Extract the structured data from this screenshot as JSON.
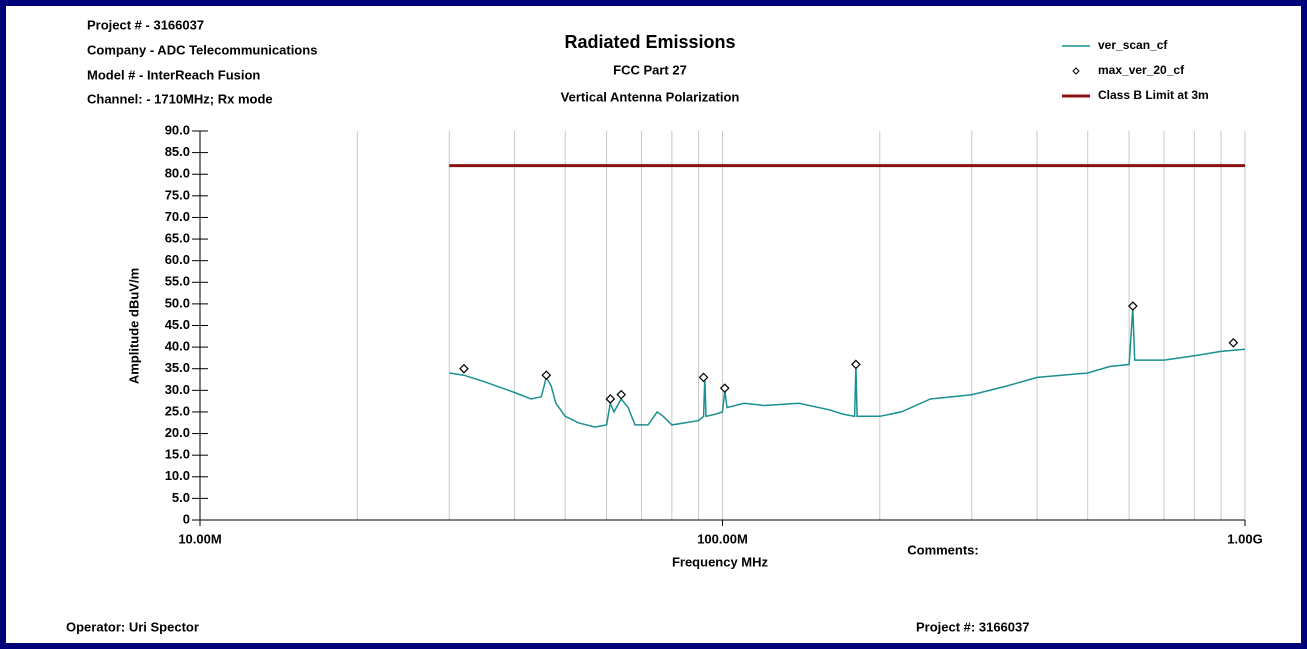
{
  "chart_data": {
    "type": "line",
    "title": "Radiated Emissions",
    "subtitles": [
      "FCC Part 27",
      "Vertical Antenna Polarization"
    ],
    "header_lines": [
      "Project # - 3166037",
      "Company - ADC Telecommunications",
      "Model # - InterReach Fusion",
      "Channel: - 1710MHz; Rx mode"
    ],
    "x_label": "Frequency MHz",
    "y_label": "Amplitude dBuV/m",
    "comments_label": "Comments:",
    "footer": {
      "operator": "Operator: Uri Spector",
      "project": "Project #: 3166037"
    },
    "x_log": true,
    "xlim": [
      10,
      1000
    ],
    "xticks": [
      {
        "value": 10,
        "label": "10.00M"
      },
      {
        "value": 100,
        "label": "100.00M"
      },
      {
        "value": 1000,
        "label": "1.00G"
      }
    ],
    "x_minor_grid": [
      20,
      30,
      40,
      50,
      60,
      70,
      80,
      90,
      200,
      300,
      400,
      500,
      600,
      700,
      800,
      900
    ],
    "ylim": [
      0,
      90
    ],
    "yticks": [
      0,
      {
        "value": 5,
        "label": "5.0"
      },
      {
        "value": 10,
        "label": "10.0"
      },
      {
        "value": 15,
        "label": "15.0"
      },
      {
        "value": 20,
        "label": "20.0"
      },
      {
        "value": 25,
        "label": "25.0"
      },
      {
        "value": 30,
        "label": "30.0"
      },
      {
        "value": 35,
        "label": "35.0"
      },
      {
        "value": 40,
        "label": "40.0"
      },
      {
        "value": 45,
        "label": "45.0"
      },
      {
        "value": 50,
        "label": "50.0"
      },
      {
        "value": 55,
        "label": "55.0"
      },
      {
        "value": 60,
        "label": "60.0"
      },
      {
        "value": 65,
        "label": "65.0"
      },
      {
        "value": 70,
        "label": "70.0"
      },
      {
        "value": 75,
        "label": "75.0"
      },
      {
        "value": 80,
        "label": "80.0"
      },
      {
        "value": 85,
        "label": "85.0"
      },
      {
        "value": 90,
        "label": "90.0"
      }
    ],
    "grid": "x",
    "series": [
      {
        "name": "ver_scan_cf",
        "color": "#1a9090",
        "style": "line",
        "x": [
          30,
          32,
          35,
          40,
          43,
          45,
          46,
          47,
          48,
          50,
          53,
          57,
          60,
          61,
          62,
          64,
          66,
          68,
          72,
          75,
          77,
          80,
          85,
          90,
          92,
          92.5,
          93,
          97,
          100,
          101,
          102,
          110,
          120,
          140,
          160,
          170,
          179,
          180,
          181,
          200,
          220,
          250,
          300,
          350,
          400,
          500,
          550,
          600,
          610,
          615,
          700,
          800,
          900,
          1000
        ],
        "values": [
          34,
          33.5,
          32,
          29.5,
          28,
          28.5,
          33,
          31,
          27,
          24,
          22.5,
          21.5,
          22,
          27,
          25,
          28,
          26,
          22,
          22,
          25,
          24,
          22,
          22.5,
          23,
          24,
          33,
          24,
          24.5,
          25,
          30,
          26,
          27,
          26.5,
          27,
          25.5,
          24.5,
          24,
          35.5,
          24,
          24,
          25,
          28,
          29,
          31,
          33,
          34,
          35.5,
          36,
          49,
          37,
          37,
          38,
          39,
          39.5
        ]
      },
      {
        "name": "max_ver_20_cf",
        "color": "#000000",
        "style": "marker",
        "x": [
          32,
          46,
          61,
          64,
          92,
          101,
          180,
          610,
          950
        ],
        "values": [
          35,
          33.5,
          28,
          29,
          33,
          30.5,
          36,
          49.5,
          41
        ]
      },
      {
        "name": "Class B Limit at 3m",
        "color": "#8b1010",
        "style": "line",
        "x": [
          30,
          1000
        ],
        "values": [
          82,
          82
        ]
      }
    ]
  }
}
